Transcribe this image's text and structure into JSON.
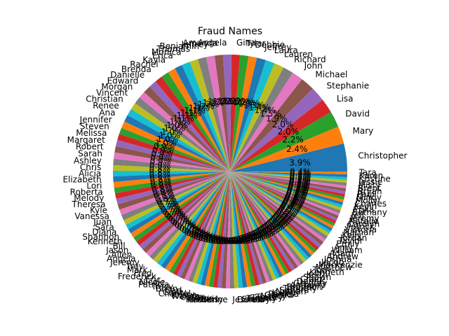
{
  "chart_data": {
    "type": "pie",
    "title": "Fraud Names",
    "slices": [
      {
        "label": "Christopher",
        "value": 4.0
      },
      {
        "label": "Mary",
        "value": 2.5
      },
      {
        "label": "David",
        "value": 2.3
      },
      {
        "label": "Lisa",
        "value": 2.1
      },
      {
        "label": "Stephanie",
        "value": 2.1
      },
      {
        "label": "Michael",
        "value": 2.0
      },
      {
        "label": "John",
        "value": 1.6
      },
      {
        "label": "Richard",
        "value": 1.5
      },
      {
        "label": "Lauren",
        "value": 1.4
      },
      {
        "label": "Laura",
        "value": 1.3
      },
      {
        "label": "Jeffrey",
        "value": 1.3
      },
      {
        "label": "Debbie",
        "value": 1.2
      },
      {
        "label": "Tyler",
        "value": 1.2
      },
      {
        "label": "Gina",
        "value": 1.2
      },
      {
        "label": "Angela",
        "value": 1.2
      },
      {
        "label": "Amanda",
        "value": 1.2
      },
      {
        "label": "Jeffrey",
        "value": 1.2
      },
      {
        "label": "Benjamin",
        "value": 1.2
      },
      {
        "label": "Thomas",
        "value": 1.2
      },
      {
        "label": "Monica",
        "value": 1.2
      },
      {
        "label": "Erica",
        "value": 1.1
      },
      {
        "label": "Kayla",
        "value": 1.1
      },
      {
        "label": "Rachel",
        "value": 1.1
      },
      {
        "label": "Brenda",
        "value": 1.1
      },
      {
        "label": "Danielle",
        "value": 1.1
      },
      {
        "label": "Edward",
        "value": 1.1
      },
      {
        "label": "Morgan",
        "value": 1.0
      },
      {
        "label": "Vincent",
        "value": 1.0
      },
      {
        "label": "Christian",
        "value": 1.0
      },
      {
        "label": "Renee",
        "value": 1.0
      },
      {
        "label": "Ana",
        "value": 1.0
      },
      {
        "label": "Jennifer",
        "value": 1.0
      },
      {
        "label": "Steven",
        "value": 0.9
      },
      {
        "label": "Melissa",
        "value": 0.9
      },
      {
        "label": "Margaret",
        "value": 0.9
      },
      {
        "label": "Robert",
        "value": 0.9
      },
      {
        "label": "Sarah",
        "value": 0.9
      },
      {
        "label": "Ashley",
        "value": 0.9
      },
      {
        "label": "Chris",
        "value": 0.8
      },
      {
        "label": "Alicia",
        "value": 0.8
      },
      {
        "label": "Elizabeth",
        "value": 0.8
      },
      {
        "label": "Lori",
        "value": 0.8
      },
      {
        "label": "Roberta",
        "value": 0.8
      },
      {
        "label": "Melody",
        "value": 0.8
      },
      {
        "label": "Theresa",
        "value": 0.8
      },
      {
        "label": "Kyle",
        "value": 0.8
      },
      {
        "label": "Vanessa",
        "value": 0.8
      },
      {
        "label": "Juan",
        "value": 0.8
      },
      {
        "label": "Sara",
        "value": 0.7
      },
      {
        "label": "Diana",
        "value": 0.7
      },
      {
        "label": "Shannon",
        "value": 0.7
      },
      {
        "label": "Kenneth",
        "value": 0.7
      },
      {
        "label": "Bill",
        "value": 0.7
      },
      {
        "label": "Jason",
        "value": 0.7
      },
      {
        "label": "Allen",
        "value": 0.7
      },
      {
        "label": "Angela",
        "value": 0.7
      },
      {
        "label": "Jeremy",
        "value": 0.7
      },
      {
        "label": "Troy",
        "value": 0.7
      },
      {
        "label": "Mark",
        "value": 0.7
      },
      {
        "label": "Fred",
        "value": 0.7
      },
      {
        "label": "Frederick",
        "value": 0.7
      },
      {
        "label": "Eric",
        "value": 0.7
      },
      {
        "label": "Nicole",
        "value": 0.6
      },
      {
        "label": "Patricia",
        "value": 0.6
      },
      {
        "label": "Tracy",
        "value": 0.6
      },
      {
        "label": "Brian",
        "value": 0.6
      },
      {
        "label": "Carl",
        "value": 0.6
      },
      {
        "label": "Cindy",
        "value": 0.6
      },
      {
        "label": "Chantal",
        "value": 0.6
      },
      {
        "label": "Kristy",
        "value": 0.6
      },
      {
        "label": "Wanda",
        "value": 0.6
      },
      {
        "label": "Cathy",
        "value": 0.6
      },
      {
        "label": "Gary",
        "value": 0.6
      },
      {
        "label": "Tina",
        "value": 0.6
      },
      {
        "label": "Alexis",
        "value": 0.6
      },
      {
        "label": "Kimberly",
        "value": 0.6
      },
      {
        "label": "Katherine",
        "value": 0.6
      },
      {
        "label": "Jessica",
        "value": 0.6
      },
      {
        "label": "Donna",
        "value": 0.6
      },
      {
        "label": "Shelby",
        "value": 0.6
      },
      {
        "label": "Tammy",
        "value": 0.6
      },
      {
        "label": "Travis",
        "value": 0.6
      },
      {
        "label": "Tracey",
        "value": 0.6
      },
      {
        "label": "Nancy",
        "value": 0.6
      },
      {
        "label": "Gerald",
        "value": 0.5
      },
      {
        "label": "Pamela",
        "value": 0.5
      },
      {
        "label": "Kathy",
        "value": 0.5
      },
      {
        "label": "Nathan",
        "value": 0.5
      },
      {
        "label": "Sandra",
        "value": 0.5
      },
      {
        "label": "Timothy",
        "value": 0.5
      },
      {
        "label": "Brandon",
        "value": 0.5
      },
      {
        "label": "Anthony",
        "value": 0.5
      },
      {
        "label": "Gregory",
        "value": 0.5
      },
      {
        "label": "Dennis",
        "value": 0.5
      },
      {
        "label": "Craig",
        "value": 0.5
      },
      {
        "label": "Shawn",
        "value": 0.5
      },
      {
        "label": "Keith",
        "value": 0.5
      },
      {
        "label": "Kenneth",
        "value": 0.5
      },
      {
        "label": "Tony",
        "value": 0.5
      },
      {
        "label": "Matthew",
        "value": 0.5
      },
      {
        "label": "Mackenzie",
        "value": 0.5
      },
      {
        "label": "Jacob",
        "value": 0.5
      },
      {
        "label": "Joshua",
        "value": 0.5
      },
      {
        "label": "Andrew",
        "value": 0.5
      },
      {
        "label": "Adam",
        "value": 0.5
      },
      {
        "label": "William",
        "value": 0.5
      },
      {
        "label": "Amy",
        "value": 0.5
      },
      {
        "label": "Emily",
        "value": 0.5
      },
      {
        "label": "Taylor",
        "value": 0.5
      },
      {
        "label": "Jordan",
        "value": 0.4
      },
      {
        "label": "Kelly",
        "value": 0.4
      },
      {
        "label": "Nathan",
        "value": 0.4
      },
      {
        "label": "Victoria",
        "value": 0.4
      },
      {
        "label": "Patrick",
        "value": 0.4
      },
      {
        "label": "Carolyn",
        "value": 0.4
      },
      {
        "label": "Natalie",
        "value": 0.4
      },
      {
        "label": "Jeremy",
        "value": 0.4
      },
      {
        "label": "Jeff",
        "value": 0.4
      },
      {
        "label": "Bethany",
        "value": 0.4
      },
      {
        "label": "Erika",
        "value": 0.4
      },
      {
        "label": "Kevin",
        "value": 0.4
      },
      {
        "label": "Charles",
        "value": 0.4
      },
      {
        "label": "Molly",
        "value": 0.4
      },
      {
        "label": "Mindy",
        "value": 0.4
      },
      {
        "label": "Paul",
        "value": 0.4
      },
      {
        "label": "Bryan",
        "value": 0.4
      },
      {
        "label": "Brent",
        "value": 0.4
      },
      {
        "label": "Misty",
        "value": 0.4
      },
      {
        "label": "Jessie",
        "value": 0.4
      },
      {
        "label": "Kristine",
        "value": 0.4
      },
      {
        "label": "Karen",
        "value": 0.4
      },
      {
        "label": "Tara",
        "value": 0.4
      }
    ],
    "colors": [
      "#1f77b4",
      "#ff7f0e",
      "#2ca02c",
      "#d62728",
      "#9467bd",
      "#8c564b",
      "#e377c2",
      "#7f7f7f",
      "#bcbd22",
      "#17becf"
    ],
    "startangle_deg": 0,
    "counterclockwise": true
  }
}
